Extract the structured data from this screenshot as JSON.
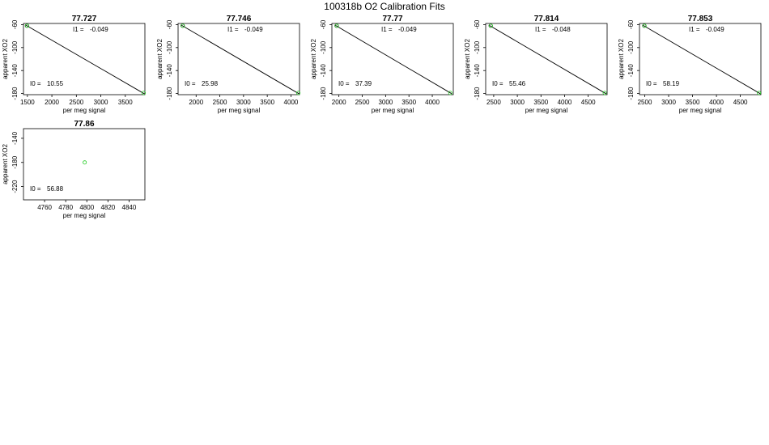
{
  "page_title": "100318b   O2 Calibration Fits",
  "chart_data": [
    {
      "type": "scatter",
      "title": "77.727",
      "xlabel": "per meg signal",
      "ylabel": "apparent XO2",
      "xlim": [
        1420,
        3900
      ],
      "ylim": [
        -182,
        -58
      ],
      "xticks": [
        1500,
        2000,
        2500,
        3000,
        3500
      ],
      "xtick_labels": [
        "1500",
        "2000",
        "2500",
        "3000",
        "3500"
      ],
      "yticks": [
        -60,
        -100,
        -140,
        -180
      ],
      "ytick_labels": [
        "-60",
        "-100",
        "-140",
        "-180"
      ],
      "points": [
        {
          "x": 1490,
          "y": -62,
          "color": "#1a1a1a"
        },
        {
          "x": 1495,
          "y": -62,
          "color": "#22cc22"
        },
        {
          "x": 3875,
          "y": -179,
          "color": "#22cc22"
        }
      ],
      "fit_line": {
        "x": [
          1470,
          3890
        ],
        "y": [
          -61,
          -180.5
        ]
      },
      "annotations": [
        {
          "label": "I1 =",
          "value": "-0.049",
          "pos": "top"
        },
        {
          "label": "I0 =",
          "value": "10.55",
          "pos": "bottom-left"
        }
      ]
    },
    {
      "type": "scatter",
      "title": "77.746",
      "xlabel": "per meg signal",
      "ylabel": "apparent XO2",
      "xlim": [
        1620,
        4180
      ],
      "ylim": [
        -182,
        -58
      ],
      "xticks": [
        2000,
        2500,
        3000,
        3500,
        4000
      ],
      "xtick_labels": [
        "2000",
        "2500",
        "3000",
        "3500",
        "4000"
      ],
      "yticks": [
        -60,
        -100,
        -140,
        -180
      ],
      "ytick_labels": [
        "-60",
        "-100",
        "-140",
        "-180"
      ],
      "points": [
        {
          "x": 1715,
          "y": -62,
          "color": "#1a1a1a"
        },
        {
          "x": 1720,
          "y": -62,
          "color": "#22cc22"
        },
        {
          "x": 4155,
          "y": -179,
          "color": "#22cc22"
        }
      ],
      "fit_line": {
        "x": [
          1690,
          4170
        ],
        "y": [
          -61,
          -180.5
        ]
      },
      "annotations": [
        {
          "label": "I1 =",
          "value": "-0.049",
          "pos": "top"
        },
        {
          "label": "I0 =",
          "value": "25.98",
          "pos": "bottom-left"
        }
      ]
    },
    {
      "type": "scatter",
      "title": "77.77",
      "xlabel": "per meg signal",
      "ylabel": "apparent XO2",
      "xlim": [
        1850,
        4450
      ],
      "ylim": [
        -182,
        -58
      ],
      "xticks": [
        2000,
        2500,
        3000,
        3500,
        4000
      ],
      "xtick_labels": [
        "2000",
        "2500",
        "3000",
        "3500",
        "4000"
      ],
      "yticks": [
        -60,
        -100,
        -140,
        -180
      ],
      "ytick_labels": [
        "-60",
        "-100",
        "-140",
        "-180"
      ],
      "points": [
        {
          "x": 1950,
          "y": -62,
          "color": "#1a1a1a"
        },
        {
          "x": 1955,
          "y": -62,
          "color": "#22cc22"
        },
        {
          "x": 4385,
          "y": -179,
          "color": "#22cc22"
        }
      ],
      "fit_line": {
        "x": [
          1920,
          4420
        ],
        "y": [
          -61,
          -180.5
        ]
      },
      "annotations": [
        {
          "label": "I1 =",
          "value": "-0.049",
          "pos": "top"
        },
        {
          "label": "I0 =",
          "value": "37.39",
          "pos": "bottom-left"
        }
      ]
    },
    {
      "type": "scatter",
      "title": "77.814",
      "xlabel": "per meg signal",
      "ylabel": "apparent XO2",
      "xlim": [
        2330,
        4900
      ],
      "ylim": [
        -182,
        -58
      ],
      "xticks": [
        2500,
        3000,
        3500,
        4000,
        4500
      ],
      "xtick_labels": [
        "2500",
        "3000",
        "3500",
        "4000",
        "4500"
      ],
      "yticks": [
        -60,
        -100,
        -140,
        -180
      ],
      "ytick_labels": [
        "-60",
        "-100",
        "-140",
        "-180"
      ],
      "points": [
        {
          "x": 2435,
          "y": -62,
          "color": "#1a1a1a"
        },
        {
          "x": 2440,
          "y": -62,
          "color": "#22cc22"
        },
        {
          "x": 4850,
          "y": -179,
          "color": "#22cc22"
        }
      ],
      "fit_line": {
        "x": [
          2400,
          4880
        ],
        "y": [
          -61,
          -180.5
        ]
      },
      "annotations": [
        {
          "label": "I1 =",
          "value": "-0.048",
          "pos": "top"
        },
        {
          "label": "I0 =",
          "value": "55.46",
          "pos": "bottom-left"
        }
      ]
    },
    {
      "type": "scatter",
      "title": "77.853",
      "xlabel": "per meg signal",
      "ylabel": "apparent XO2",
      "xlim": [
        2390,
        4930
      ],
      "ylim": [
        -182,
        -58
      ],
      "xticks": [
        2500,
        3000,
        3500,
        4000,
        4500
      ],
      "xtick_labels": [
        "2500",
        "3000",
        "3500",
        "4000",
        "4500"
      ],
      "yticks": [
        -60,
        -100,
        -140,
        -180
      ],
      "ytick_labels": [
        "-60",
        "-100",
        "-140",
        "-180"
      ],
      "points": [
        {
          "x": 2490,
          "y": -62,
          "color": "#1a1a1a"
        },
        {
          "x": 2495,
          "y": -62,
          "color": "#22cc22"
        },
        {
          "x": 4890,
          "y": -179,
          "color": "#22cc22"
        }
      ],
      "fit_line": {
        "x": [
          2460,
          4920
        ],
        "y": [
          -61,
          -180.5
        ]
      },
      "annotations": [
        {
          "label": "I1 =",
          "value": "-0.049",
          "pos": "top"
        },
        {
          "label": "I0 =",
          "value": "58.19",
          "pos": "bottom-left"
        }
      ]
    },
    {
      "type": "scatter",
      "title": "77.86",
      "xlabel": "per meg signal",
      "ylabel": "apparent XO2",
      "xlim": [
        4740,
        4855
      ],
      "ylim": [
        -242,
        -124
      ],
      "xticks": [
        4760,
        4780,
        4800,
        4820,
        4840
      ],
      "xtick_labels": [
        "4760",
        "4780",
        "4800",
        "4820",
        "4840"
      ],
      "yticks": [
        -140,
        -180,
        -220
      ],
      "ytick_labels": [
        "-140",
        "-180",
        "-220"
      ],
      "points": [
        {
          "x": 4798,
          "y": -180,
          "color": "#22cc22"
        }
      ],
      "fit_line": null,
      "annotations": [
        {
          "label": "I0 =",
          "value": "56.88",
          "pos": "bottom-left"
        }
      ]
    }
  ]
}
